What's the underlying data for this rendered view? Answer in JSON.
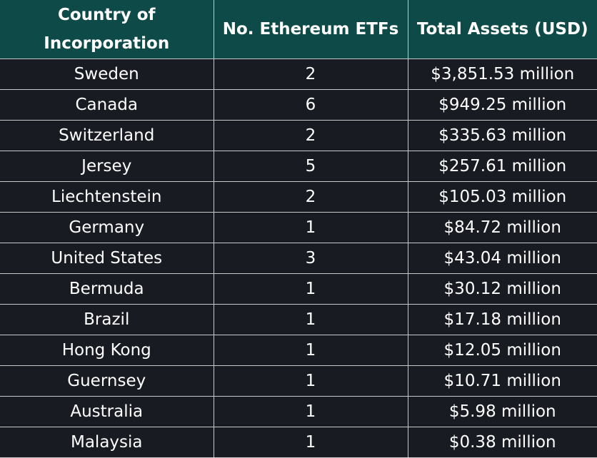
{
  "table": {
    "header": [
      "Country of Incorporation",
      "No. Ethereum ETFs",
      "Total Assets (USD)"
    ],
    "rows": [
      [
        "Sweden",
        "2",
        "$3,851.53 million"
      ],
      [
        "Canada",
        "6",
        "$949.25 million"
      ],
      [
        "Switzerland",
        "2",
        "$335.63 million"
      ],
      [
        "Jersey",
        "5",
        "$257.61 million"
      ],
      [
        "Liechtenstein",
        "2",
        "$105.03 million"
      ],
      [
        "Germany",
        "1",
        "$84.72 million"
      ],
      [
        "United States",
        "3",
        "$43.04 million"
      ],
      [
        "Bermuda",
        "1",
        "$30.12 million"
      ],
      [
        "Brazil",
        "1",
        "$17.18 million"
      ],
      [
        "Hong Kong",
        "1",
        "$12.05 million"
      ],
      [
        "Guernsey",
        "1",
        "$10.71 million"
      ],
      [
        "Australia",
        "1",
        "$5.98 million"
      ],
      [
        "Malaysia",
        "1",
        "$0.38 million"
      ]
    ]
  }
}
